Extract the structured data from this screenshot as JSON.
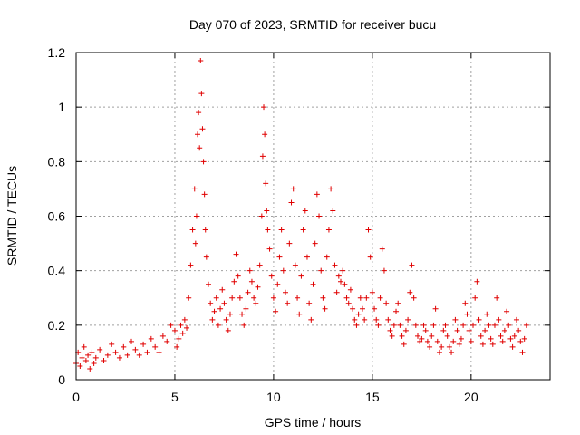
{
  "chart_data": {
    "type": "scatter",
    "title": "Day 070 of 2023, SRMTID for receiver bucu",
    "xlabel": "GPS time / hours",
    "ylabel": "SRMTID / TECUs",
    "xlim": [
      0,
      24
    ],
    "ylim": [
      0,
      1.2
    ],
    "x_ticks": [
      0,
      5,
      10,
      15,
      20
    ],
    "x_tick_labels": [
      "0",
      "5",
      "10",
      "15",
      "20"
    ],
    "y_ticks": [
      0,
      0.2,
      0.4,
      0.6,
      0.8,
      1.0,
      1.2
    ],
    "y_tick_labels": [
      "0",
      "0.2",
      "0.4",
      "0.6",
      "0.8",
      "1",
      "1.2"
    ],
    "grid": true,
    "marker": "plus",
    "color": "#e00000",
    "series": [
      {
        "name": "SRMTID",
        "x": [
          0.0,
          0.1,
          0.2,
          0.3,
          0.4,
          0.5,
          0.6,
          0.7,
          0.8,
          0.9,
          1.0,
          1.2,
          1.4,
          1.6,
          1.8,
          2.0,
          2.2,
          2.4,
          2.6,
          2.8,
          3.0,
          3.2,
          3.4,
          3.6,
          3.8,
          4.0,
          4.2,
          4.4,
          4.6,
          4.8,
          5.0,
          5.1,
          5.2,
          5.3,
          5.4,
          5.5,
          5.6,
          5.7,
          5.8,
          5.9,
          6.0,
          6.05,
          6.1,
          6.15,
          6.2,
          6.25,
          6.3,
          6.35,
          6.4,
          6.45,
          6.5,
          6.55,
          6.6,
          6.7,
          6.8,
          6.9,
          7.0,
          7.1,
          7.2,
          7.3,
          7.4,
          7.5,
          7.6,
          7.7,
          7.8,
          7.9,
          8.0,
          8.1,
          8.2,
          8.3,
          8.4,
          8.5,
          8.6,
          8.7,
          8.8,
          8.9,
          9.0,
          9.1,
          9.2,
          9.3,
          9.4,
          9.45,
          9.5,
          9.55,
          9.6,
          9.65,
          9.7,
          9.8,
          9.9,
          10.0,
          10.1,
          10.2,
          10.3,
          10.4,
          10.5,
          10.6,
          10.7,
          10.8,
          10.9,
          11.0,
          11.1,
          11.2,
          11.3,
          11.4,
          11.5,
          11.6,
          11.7,
          11.8,
          11.9,
          12.0,
          12.1,
          12.2,
          12.3,
          12.4,
          12.5,
          12.6,
          12.7,
          12.8,
          12.9,
          13.0,
          13.1,
          13.2,
          13.3,
          13.4,
          13.5,
          13.6,
          13.7,
          13.8,
          13.9,
          14.0,
          14.1,
          14.2,
          14.3,
          14.4,
          14.5,
          14.6,
          14.7,
          14.8,
          14.9,
          15.0,
          15.1,
          15.2,
          15.3,
          15.4,
          15.5,
          15.6,
          15.7,
          15.8,
          15.9,
          16.0,
          16.1,
          16.2,
          16.3,
          16.4,
          16.5,
          16.6,
          16.7,
          16.8,
          16.9,
          17.0,
          17.1,
          17.2,
          17.3,
          17.4,
          17.5,
          17.6,
          17.7,
          17.8,
          17.9,
          18.0,
          18.1,
          18.2,
          18.3,
          18.4,
          18.5,
          18.6,
          18.7,
          18.8,
          18.9,
          19.0,
          19.1,
          19.2,
          19.3,
          19.4,
          19.5,
          19.6,
          19.7,
          19.8,
          19.9,
          20.0,
          20.1,
          20.2,
          20.3,
          20.4,
          20.5,
          20.6,
          20.7,
          20.8,
          20.9,
          21.0,
          21.1,
          21.2,
          21.3,
          21.4,
          21.5,
          21.6,
          21.7,
          21.8,
          21.9,
          22.0,
          22.1,
          22.2,
          22.3,
          22.4,
          22.5,
          22.6,
          22.7,
          22.8
        ],
        "y": [
          0.06,
          0.1,
          0.05,
          0.08,
          0.12,
          0.07,
          0.09,
          0.04,
          0.1,
          0.06,
          0.08,
          0.11,
          0.07,
          0.09,
          0.13,
          0.1,
          0.08,
          0.12,
          0.09,
          0.14,
          0.11,
          0.09,
          0.13,
          0.1,
          0.15,
          0.12,
          0.1,
          0.16,
          0.14,
          0.2,
          0.18,
          0.12,
          0.15,
          0.2,
          0.17,
          0.22,
          0.19,
          0.3,
          0.42,
          0.55,
          0.7,
          0.5,
          0.6,
          0.9,
          0.98,
          0.85,
          1.17,
          1.05,
          0.92,
          0.8,
          0.68,
          0.55,
          0.45,
          0.35,
          0.28,
          0.22,
          0.25,
          0.3,
          0.2,
          0.26,
          0.33,
          0.28,
          0.22,
          0.18,
          0.24,
          0.3,
          0.36,
          0.46,
          0.38,
          0.3,
          0.24,
          0.2,
          0.26,
          0.32,
          0.4,
          0.36,
          0.3,
          0.28,
          0.34,
          0.42,
          0.6,
          0.82,
          1.0,
          0.9,
          0.72,
          0.62,
          0.55,
          0.48,
          0.38,
          0.3,
          0.25,
          0.35,
          0.45,
          0.55,
          0.4,
          0.32,
          0.28,
          0.5,
          0.65,
          0.7,
          0.42,
          0.3,
          0.24,
          0.38,
          0.55,
          0.62,
          0.45,
          0.28,
          0.22,
          0.35,
          0.5,
          0.68,
          0.6,
          0.4,
          0.3,
          0.26,
          0.45,
          0.55,
          0.7,
          0.62,
          0.42,
          0.32,
          0.38,
          0.36,
          0.4,
          0.35,
          0.3,
          0.28,
          0.33,
          0.26,
          0.22,
          0.2,
          0.24,
          0.3,
          0.26,
          0.22,
          0.3,
          0.55,
          0.45,
          0.32,
          0.26,
          0.22,
          0.2,
          0.3,
          0.48,
          0.4,
          0.28,
          0.22,
          0.18,
          0.16,
          0.2,
          0.25,
          0.28,
          0.2,
          0.16,
          0.13,
          0.18,
          0.22,
          0.32,
          0.42,
          0.3,
          0.2,
          0.16,
          0.14,
          0.15,
          0.2,
          0.18,
          0.14,
          0.12,
          0.16,
          0.2,
          0.26,
          0.14,
          0.1,
          0.12,
          0.18,
          0.2,
          0.16,
          0.12,
          0.1,
          0.14,
          0.22,
          0.18,
          0.13,
          0.15,
          0.2,
          0.28,
          0.24,
          0.18,
          0.14,
          0.2,
          0.3,
          0.36,
          0.22,
          0.16,
          0.13,
          0.18,
          0.24,
          0.2,
          0.15,
          0.13,
          0.2,
          0.3,
          0.22,
          0.16,
          0.14,
          0.18,
          0.25,
          0.2,
          0.15,
          0.12,
          0.16,
          0.22,
          0.18,
          0.14,
          0.1,
          0.15,
          0.2
        ]
      }
    ]
  }
}
